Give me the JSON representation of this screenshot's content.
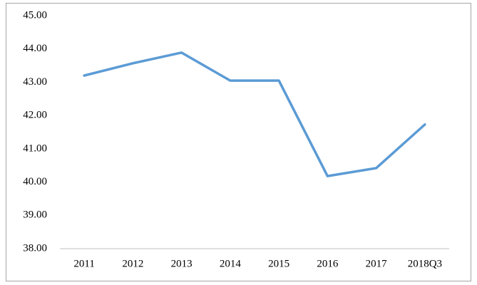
{
  "chart_data": {
    "type": "line",
    "categories": [
      "2011",
      "2012",
      "2013",
      "2014",
      "2015",
      "2016",
      "2017",
      "2018Q3"
    ],
    "values": [
      43.2,
      43.57,
      43.89,
      43.05,
      43.05,
      40.18,
      40.42,
      41.73
    ],
    "color": "#5b9bd5",
    "ylim": [
      38,
      45
    ],
    "yticks": [
      {
        "value": 38,
        "label": "38.00"
      },
      {
        "value": 39,
        "label": "39.00"
      },
      {
        "value": 40,
        "label": "40.00"
      },
      {
        "value": 41,
        "label": "41.00"
      },
      {
        "value": 42,
        "label": "42.00"
      },
      {
        "value": 43,
        "label": "43.00"
      },
      {
        "value": 44,
        "label": "44.00"
      },
      {
        "value": 45,
        "label": "45.00"
      }
    ],
    "grid": false
  }
}
